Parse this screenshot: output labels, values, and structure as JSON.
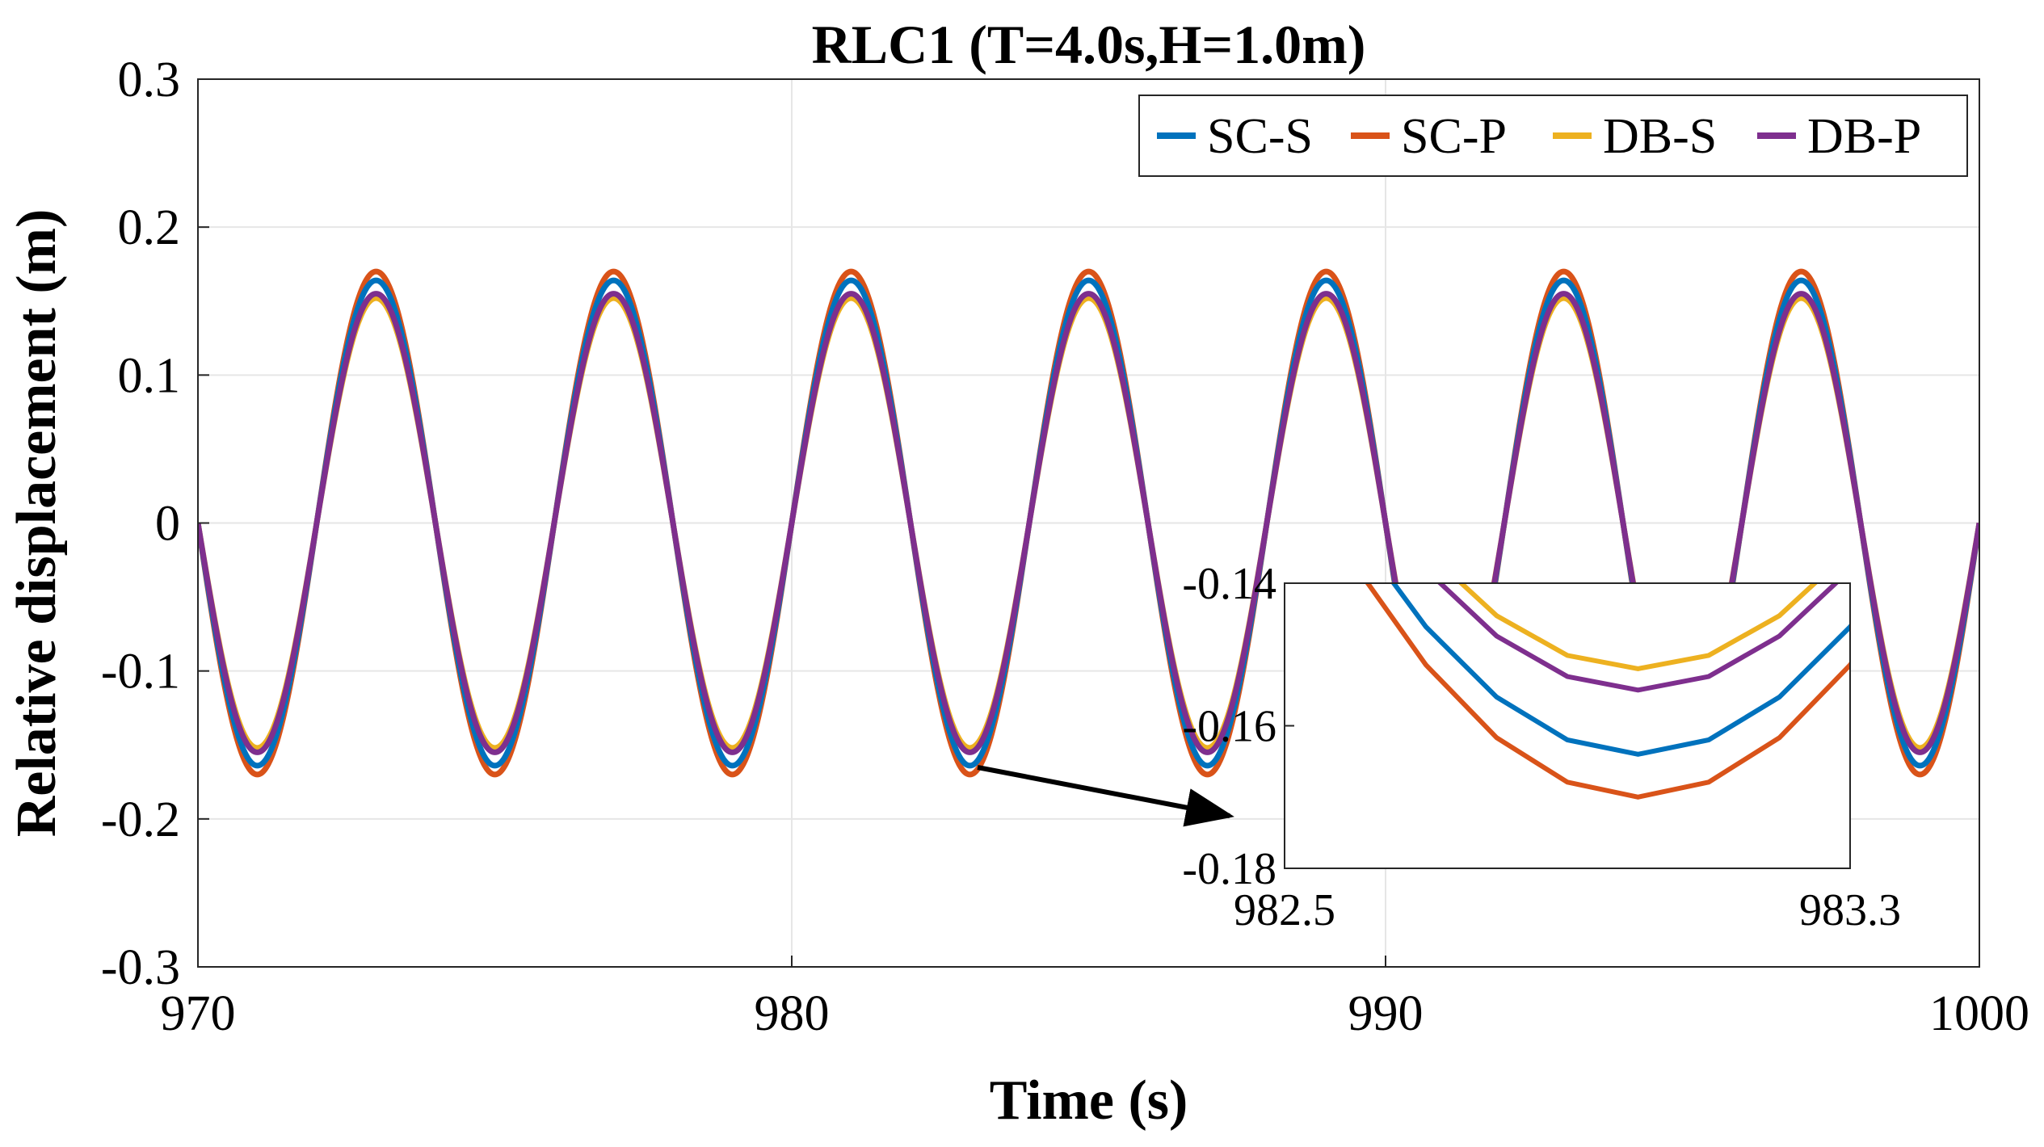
{
  "chart_data": {
    "type": "line",
    "title": "RLC1 (T=4.0s,H=1.0m)",
    "xlabel": "Time (s)",
    "ylabel": "Relative displacement (m)",
    "xlim": [
      970,
      1000
    ],
    "ylim": [
      -0.3,
      0.3
    ],
    "xticks": [
      "970",
      "980",
      "990",
      "1000"
    ],
    "yticks": [
      "0.3",
      "0.2",
      "0.1",
      "0",
      "-0.1",
      "-0.2",
      "-0.3"
    ],
    "grid": true,
    "legend_position": "top-right",
    "period": 4.0,
    "series": [
      {
        "name": "SC-S",
        "color": "#0072BD",
        "amplitude": 0.164,
        "phase_offset": 0
      },
      {
        "name": "SC-P",
        "color": "#D95319",
        "amplitude": 0.17,
        "phase_offset": 0
      },
      {
        "name": "DB-S",
        "color": "#EDB120",
        "amplitude": 0.152,
        "phase_offset": 0
      },
      {
        "name": "DB-P",
        "color": "#7E2F8E",
        "amplitude": 0.155,
        "phase_offset": 0
      }
    ],
    "inset": {
      "xlim": [
        982.5,
        983.3
      ],
      "ylim": [
        -0.18,
        -0.14
      ],
      "xticks": [
        "982.5",
        "983.3"
      ],
      "yticks": [
        "-0.14",
        "-0.16",
        "-0.18"
      ],
      "annotation": "arrow from trough near t=983 to inset"
    }
  }
}
